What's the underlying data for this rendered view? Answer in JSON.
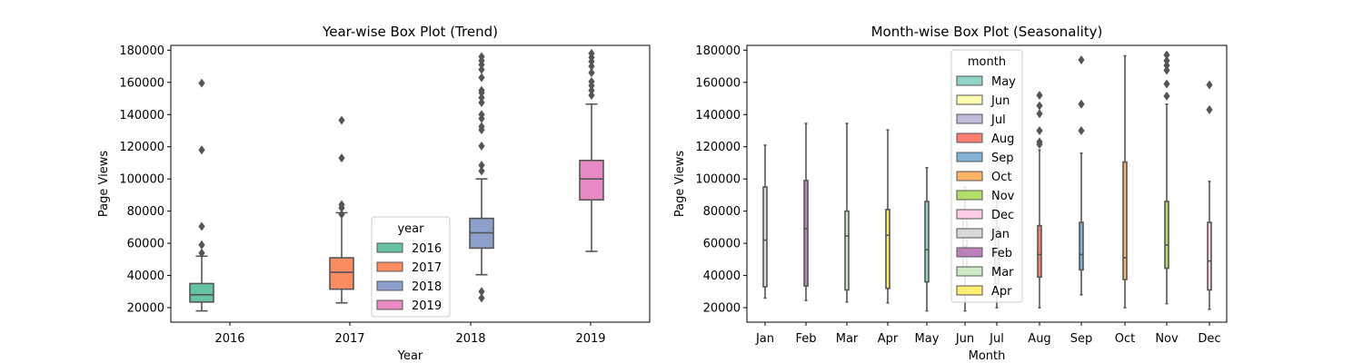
{
  "chart_data": [
    {
      "type": "box",
      "title": "Year-wise Box Plot (Trend)",
      "xlabel": "Year",
      "ylabel": "Page Views",
      "categories": [
        "2016",
        "2017",
        "2018",
        "2019"
      ],
      "yticks": [
        "20000",
        "40000",
        "60000",
        "80000",
        "100000",
        "120000",
        "140000",
        "160000",
        "180000"
      ],
      "ylim": [
        11000,
        183000
      ],
      "legend": {
        "title": "year",
        "position": "lower-center",
        "entries": [
          "2016",
          "2017",
          "2018",
          "2019"
        ],
        "colors": [
          "#66c2a5",
          "#fc8d62",
          "#8da0cb",
          "#e78ac3"
        ]
      },
      "boxes": [
        {
          "category": "2016",
          "hue": "2016",
          "color": "#66c2a5",
          "whisker_low": 18000,
          "q1": 23500,
          "median": 28000,
          "q3": 35000,
          "whisker_high": 52000,
          "outliers": [
            54000,
            59000,
            70500,
            118000,
            159500
          ]
        },
        {
          "category": "2017",
          "hue": "2017",
          "color": "#fc8d62",
          "whisker_low": 23000,
          "q1": 31500,
          "median": 42000,
          "q3": 51000,
          "whisker_high": 79000,
          "outliers": [
            78000,
            82000,
            84000,
            113000,
            136500
          ]
        },
        {
          "category": "2018",
          "hue": "2018",
          "color": "#8da0cb",
          "whisker_low": 40500,
          "q1": 57000,
          "median": 66500,
          "q3": 75500,
          "whisker_high": 100000,
          "outliers": [
            26000,
            30000,
            105000,
            108500,
            120500,
            130500,
            132500,
            137500,
            140000,
            147500,
            150500,
            153500,
            155000,
            163000,
            168000,
            171000,
            173500,
            176000
          ]
        },
        {
          "category": "2019",
          "hue": "2019",
          "color": "#e78ac3",
          "whisker_low": 55000,
          "q1": 87000,
          "median": 100000,
          "q3": 111500,
          "whisker_high": 146500,
          "outliers": [
            152000,
            155000,
            158000,
            160500,
            166000,
            170000,
            173000,
            175500,
            178000
          ]
        }
      ]
    },
    {
      "type": "box",
      "title": "Month-wise Box Plot (Seasonality)",
      "xlabel": "Month",
      "ylabel": "Page Views",
      "categories": [
        "Jan",
        "Feb",
        "Mar",
        "Apr",
        "May",
        "Jun",
        "Jul",
        "Aug",
        "Sep",
        "Oct",
        "Nov",
        "Dec"
      ],
      "yticks": [
        "20000",
        "40000",
        "60000",
        "80000",
        "100000",
        "120000",
        "140000",
        "160000",
        "180000"
      ],
      "ylim": [
        11000,
        183000
      ],
      "legend": {
        "title": "month",
        "position": "upper-center",
        "entries": [
          "May",
          "Jun",
          "Jul",
          "Aug",
          "Sep",
          "Oct",
          "Nov",
          "Dec",
          "Jan",
          "Feb",
          "Mar",
          "Apr"
        ],
        "colors": [
          "#8dd3c7",
          "#ffffb3",
          "#bebada",
          "#fb8072",
          "#80b1d3",
          "#fdb462",
          "#b3de69",
          "#fccde5",
          "#d9d9d9",
          "#bc80bd",
          "#ccebc5",
          "#ffed6f"
        ]
      },
      "boxes": [
        {
          "category": "Jan",
          "hue": "Jan",
          "color": "#d9d9d9",
          "whisker_low": 26000,
          "q1": 33000,
          "median": 62000,
          "q3": 95000,
          "whisker_high": 121000,
          "outliers": []
        },
        {
          "category": "Feb",
          "hue": "Feb",
          "color": "#bc80bd",
          "whisker_low": 24500,
          "q1": 33500,
          "median": 69000,
          "q3": 99000,
          "whisker_high": 134500,
          "outliers": []
        },
        {
          "category": "Mar",
          "hue": "Mar",
          "color": "#ccebc5",
          "whisker_low": 23500,
          "q1": 31000,
          "median": 64500,
          "q3": 80000,
          "whisker_high": 134500,
          "outliers": []
        },
        {
          "category": "Apr",
          "hue": "Apr",
          "color": "#ffed6f",
          "whisker_low": 23000,
          "q1": 32000,
          "median": 65000,
          "q3": 81000,
          "whisker_high": 130500,
          "outliers": []
        },
        {
          "category": "May",
          "hue": "May",
          "color": "#8dd3c7",
          "whisker_low": 18000,
          "q1": 36000,
          "median": 56000,
          "q3": 86000,
          "whisker_high": 107000,
          "outliers": []
        },
        {
          "category": "Jun",
          "hue": "Jun",
          "color": "#ffffb3",
          "whisker_low": 18000,
          "q1": 40000,
          "median": 58000,
          "q3": 77000,
          "whisker_high": 95000,
          "outliers": []
        },
        {
          "category": "Jul",
          "hue": "Jul",
          "color": "#bebada",
          "whisker_low": 20000,
          "q1": 35000,
          "median": 55000,
          "q3": 70000,
          "whisker_high": 90000,
          "outliers": []
        },
        {
          "category": "Aug",
          "hue": "Aug",
          "color": "#fb8072",
          "whisker_low": 20000,
          "q1": 39000,
          "median": 53000,
          "q3": 71000,
          "whisker_high": 118000,
          "outliers": [
            121500,
            123000,
            130000,
            140500,
            145500,
            152000
          ]
        },
        {
          "category": "Sep",
          "hue": "Sep",
          "color": "#80b1d3",
          "whisker_low": 28000,
          "q1": 43500,
          "median": 53000,
          "q3": 73000,
          "whisker_high": 116000,
          "outliers": [
            130000,
            146500,
            174000
          ]
        },
        {
          "category": "Oct",
          "hue": "Oct",
          "color": "#fdb462",
          "whisker_low": 20000,
          "q1": 37500,
          "median": 51000,
          "q3": 110500,
          "whisker_high": 176500,
          "outliers": []
        },
        {
          "category": "Nov",
          "hue": "Nov",
          "color": "#b3de69",
          "whisker_low": 22500,
          "q1": 44500,
          "median": 59000,
          "q3": 86000,
          "whisker_high": 146500,
          "outliers": [
            151500,
            159000,
            167500,
            170500,
            173500,
            177000
          ]
        },
        {
          "category": "Dec",
          "hue": "Dec",
          "color": "#fccde5",
          "whisker_low": 19000,
          "q1": 31000,
          "median": 49000,
          "q3": 73000,
          "whisker_high": 98500,
          "outliers": [
            143000,
            158500
          ]
        }
      ]
    }
  ]
}
